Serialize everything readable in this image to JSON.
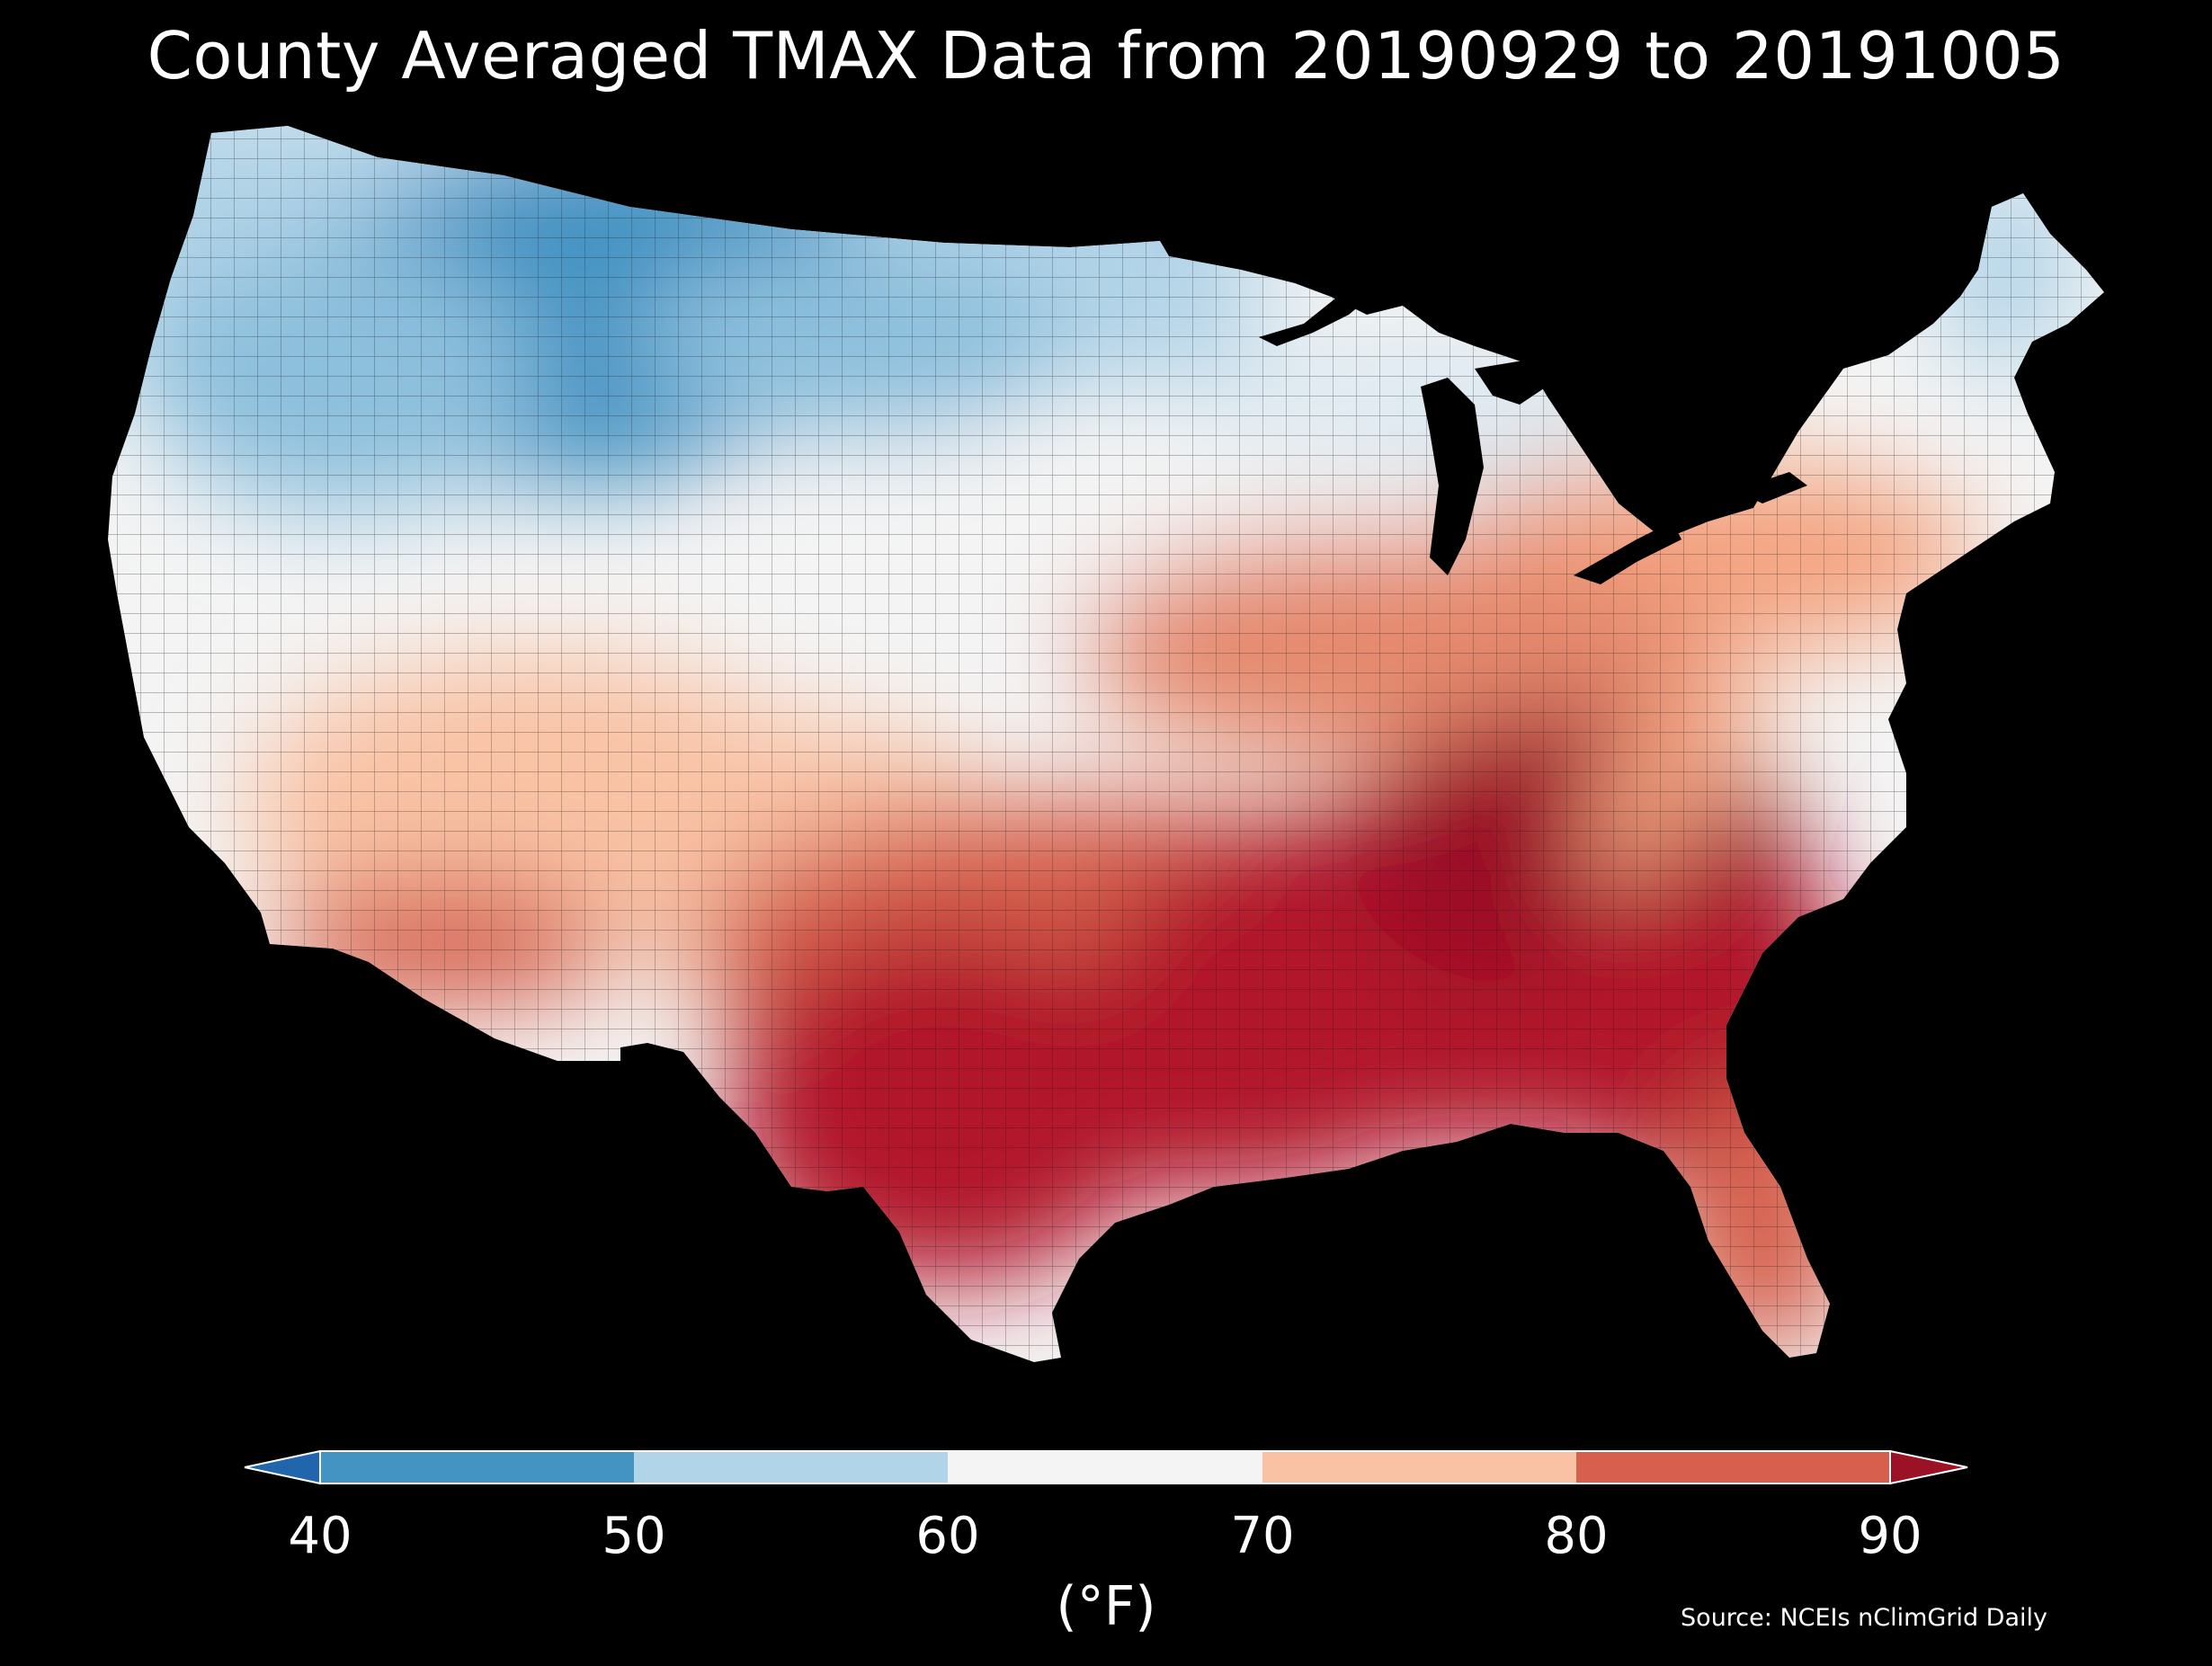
{
  "title": "County Averaged TMAX Data from 20190929 to 20191005",
  "source": "Source: NCEIs nClimGrid Daily",
  "colorbar": {
    "unit_label": "(°F)",
    "ticks": [
      "40",
      "50",
      "60",
      "70",
      "80",
      "90"
    ],
    "bins": [
      {
        "range": "<40",
        "color": "#2166ac"
      },
      {
        "range": "40-50",
        "color": "#4393c3"
      },
      {
        "range": "50-60",
        "color": "#b2d4e8"
      },
      {
        "range": "60-70",
        "color": "#f4f4f4"
      },
      {
        "range": "70-80",
        "color": "#f9c2a4"
      },
      {
        "range": "80-90",
        "color": "#d6604d"
      },
      {
        "range": ">90",
        "color": "#9b1125"
      }
    ]
  },
  "map": {
    "region": "Contiguous United States",
    "variable": "TMAX",
    "pattern": "Coolest (40-50°F) across Montana, Wyoming, North Dakota and the northern Rockies; 50-60°F across the northern tier and New England; 60-70°F in the central Plains and Great Lakes; 70-80°F across the Southwest and mid-Atlantic; 80-90°F+ across Texas, the Gulf Coast, Southeast, Florida and Tennessee/Ohio valleys"
  }
}
